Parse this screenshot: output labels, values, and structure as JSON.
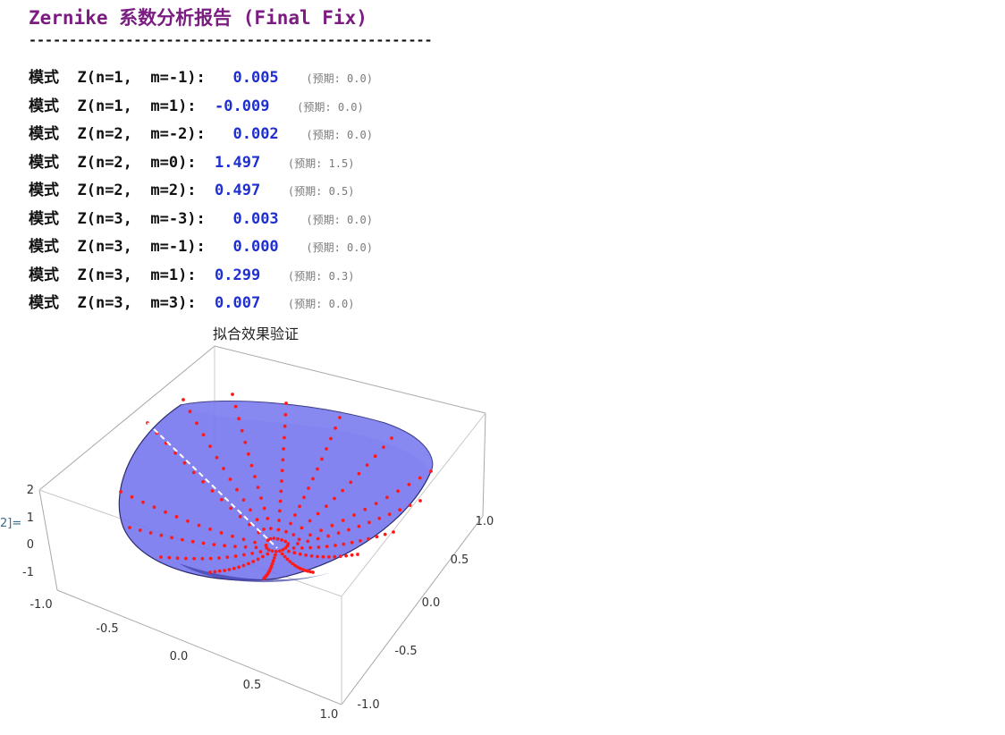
{
  "report": {
    "title": "Zernike 系数分析报告 (Final Fix)",
    "rule": "--------------------------------------------------",
    "rows": [
      {
        "mode": "模式",
        "label": "Z(n=1,  m=-1):",
        "value": " 0.005",
        "expected": "(预期: 0.0)"
      },
      {
        "mode": "模式",
        "label": "Z(n=1,  m=1):",
        "value": "-0.009",
        "expected": "(预期: 0.0)"
      },
      {
        "mode": "模式",
        "label": "Z(n=2,  m=-2):",
        "value": " 0.002",
        "expected": "(预期: 0.0)"
      },
      {
        "mode": "模式",
        "label": "Z(n=2,  m=0):",
        "value": "1.497",
        "expected": "(预期: 1.5)"
      },
      {
        "mode": "模式",
        "label": "Z(n=2,  m=2):",
        "value": "0.497",
        "expected": "(预期: 0.5)"
      },
      {
        "mode": "模式",
        "label": "Z(n=3,  m=-3):",
        "value": " 0.003",
        "expected": "(预期: 0.0)"
      },
      {
        "mode": "模式",
        "label": "Z(n=3,  m=-1):",
        "value": " 0.000",
        "expected": "(预期: 0.0)"
      },
      {
        "mode": "模式",
        "label": "Z(n=3,  m=1):",
        "value": "0.299",
        "expected": "(预期: 0.3)"
      },
      {
        "mode": "模式",
        "label": "Z(n=3,  m=3):",
        "value": "0.007",
        "expected": "(预期: 0.0)"
      }
    ]
  },
  "output_label": "2]=",
  "plot": {
    "title": "拟合效果验证",
    "surface_color": "#6e6ef0",
    "point_color": "#ff1a1a",
    "z_ticks": [
      "2",
      "1",
      "0",
      "-1"
    ],
    "x_ticks": [
      "-1.0",
      "-0.5",
      "0.0",
      "0.5",
      "1.0"
    ],
    "y_ticks": [
      "1.0",
      "0.5",
      "0.0",
      "-0.5",
      "-1.0"
    ]
  }
}
